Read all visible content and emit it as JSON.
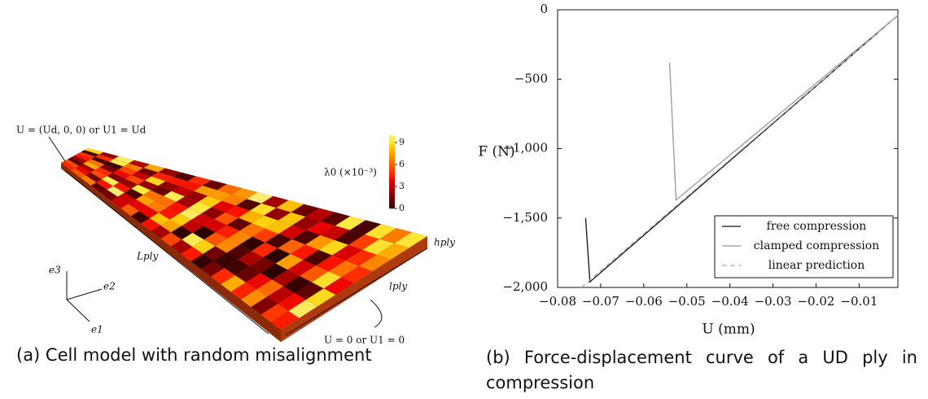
{
  "figure_a": {
    "caption": "(a) Cell model with random misalignment",
    "labels": {
      "load": "U = (Ud, 0, 0) or U1 = Ud",
      "length": "Lply",
      "width": "lply",
      "height": "hply",
      "fixed": "U = 0 or U1 = 0",
      "e3": "e3",
      "e2": "e2",
      "e1": "e1"
    },
    "colorbar": {
      "title": "λ0 (×10⁻³)",
      "ticks": [
        0,
        3,
        6,
        9
      ],
      "lim": [
        0,
        10
      ]
    }
  },
  "caption_b": "(b) Force-displacement curve of a UD ply in compression",
  "chart_data": {
    "type": "line",
    "xlabel": "U (mm)",
    "ylabel": "F (N)",
    "xlim": [
      -0.08,
      -0.001
    ],
    "ylim": [
      -2000,
      0
    ],
    "xticks": [
      {
        "value": -0.08,
        "label": "−0.08"
      },
      {
        "value": -0.07,
        "label": "−0.07"
      },
      {
        "value": -0.06,
        "label": "−0.06"
      },
      {
        "value": -0.05,
        "label": "−0.05"
      },
      {
        "value": -0.04,
        "label": "−0.04"
      },
      {
        "value": -0.03,
        "label": "−0.03"
      },
      {
        "value": -0.02,
        "label": "−0.02"
      },
      {
        "value": -0.01,
        "label": "−0.01"
      }
    ],
    "yticks": [
      {
        "value": -2000,
        "label": "−2,000"
      },
      {
        "value": -1500,
        "label": "−1,500"
      },
      {
        "value": -1000,
        "label": "−1,000"
      },
      {
        "value": -500,
        "label": "−500"
      },
      0
    ],
    "legend": "lower right",
    "series": [
      {
        "name": "free compression",
        "color": "#111111",
        "dash": false,
        "x": [
          -0.0735,
          -0.0725,
          -0.001
        ],
        "values": [
          -1500,
          -1960,
          -40
        ]
      },
      {
        "name": "clamped compression",
        "color": "#999999",
        "dash": false,
        "x": [
          -0.054,
          -0.0525,
          -0.001
        ],
        "values": [
          -380,
          -1370,
          -40
        ]
      },
      {
        "name": "linear prediction",
        "color": "#aaaaaa",
        "dash": true,
        "x": [
          -0.0745,
          -0.001
        ],
        "values": [
          -2000,
          -40
        ]
      }
    ]
  }
}
